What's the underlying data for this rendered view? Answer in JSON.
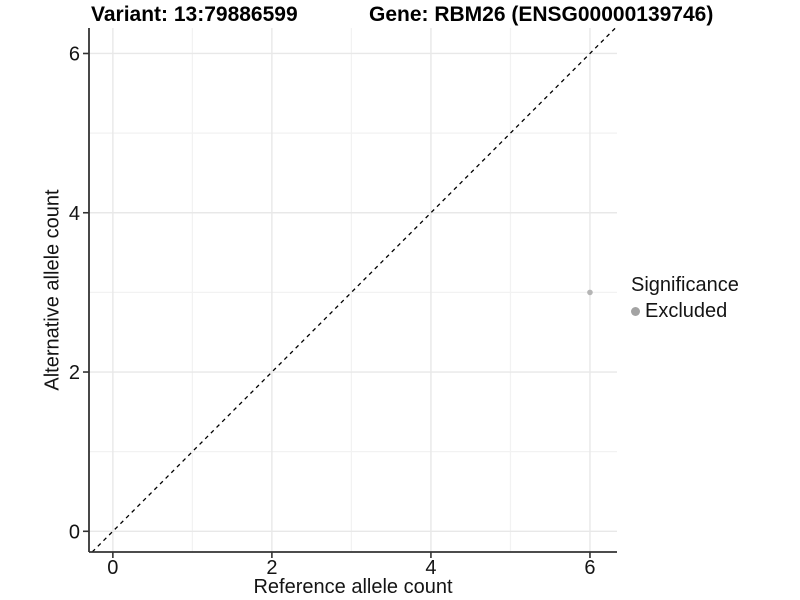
{
  "title": {
    "variant": "Variant: 13:79886599",
    "gene": "Gene: RBM26 (ENSG00000139746)"
  },
  "chart_data": {
    "type": "scatter",
    "title": "Variant: 13:79886599  Gene: RBM26 (ENSG00000139746)",
    "xlabel": "Reference allele count",
    "ylabel": "Alternative allele count",
    "xlim": [
      -0.3,
      6.34
    ],
    "ylim": [
      -0.26,
      6.32
    ],
    "x_ticks": [
      0,
      2,
      4,
      6
    ],
    "y_ticks": [
      0,
      2,
      4,
      6
    ],
    "x_minor_ticks": [
      1,
      3,
      5
    ],
    "y_minor_ticks": [
      1,
      3,
      5
    ],
    "grid": "major and minor, light grey on white",
    "points": [
      {
        "x": 6,
        "y": 3,
        "series": "Excluded"
      }
    ],
    "reference_line": {
      "kind": "identity",
      "style": "dashed",
      "color": "#000000"
    },
    "legend": {
      "title": "Significance",
      "position": "right",
      "items": [
        {
          "label": "Excluded",
          "color": "#a3a3a3"
        }
      ]
    }
  },
  "colors": {
    "background": "#ffffff",
    "grid_major": "#e8e8e8",
    "grid_minor": "#f2f2f2",
    "axis_line": "#333333",
    "tick_text": "#141414",
    "title_text": "#000000",
    "point_fill": "#b5b5b5",
    "dashed_line": "#000000"
  }
}
